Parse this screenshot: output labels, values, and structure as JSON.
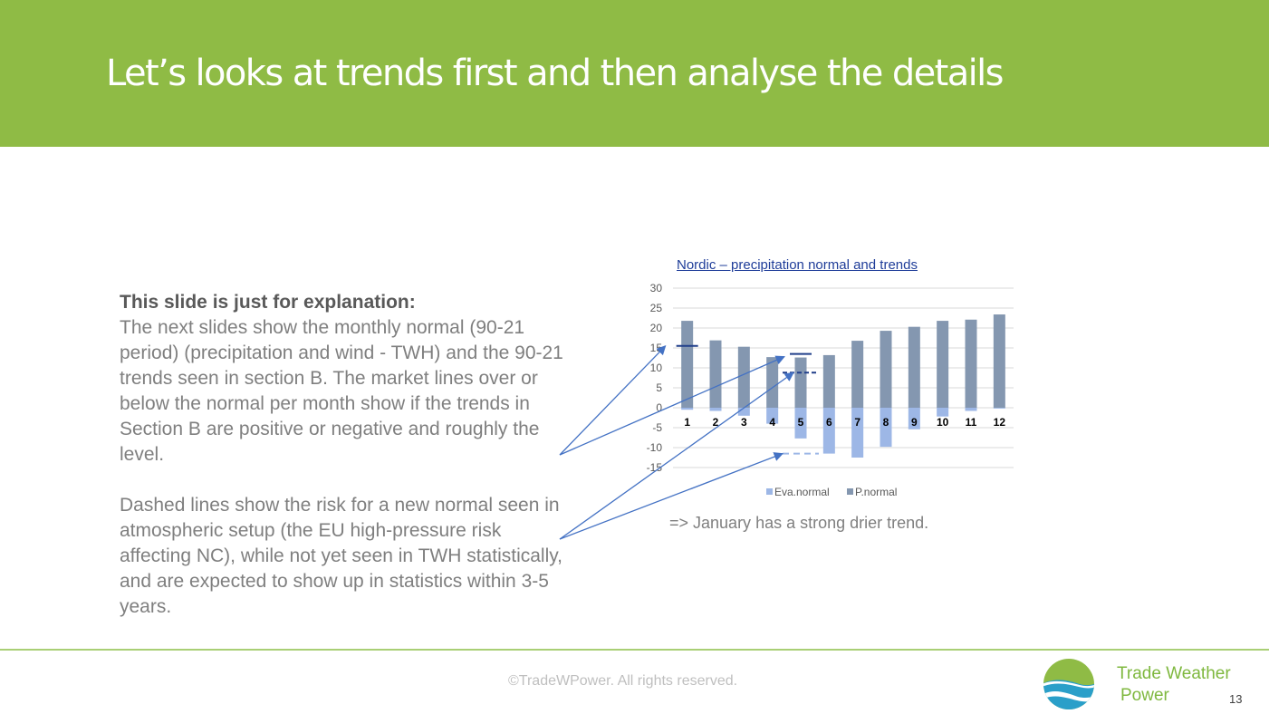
{
  "slide": {
    "title": "Let’s looks at trends first and then analyse the details",
    "body_heading": "This slide is just for explanation:",
    "body_paragraph1": "The next slides show the monthly normal (90-21 period) (precipitation and wind - TWH) and the 90-21 trends seen in section B. The market lines over or below the normal per month show if the trends in Section B are positive or negative and roughly the level.",
    "body_paragraph2": "Dashed lines show the risk for a new normal seen in atmospheric setup (the EU high-pressure risk affecting NC), while not yet seen in TWH statistically, and are expected to show up in statistics within 3-5 years.",
    "conclusion": "=> January has a strong drier trend.",
    "copyright": "©TradeWPower. All rights reserved.",
    "brand_line1": "Trade Weather",
    "brand_line2": "Power",
    "page_number": "13"
  },
  "colors": {
    "header_green": "#8fbb45",
    "eva_normal": "#9db7e6",
    "p_normal": "#8497b0",
    "trend_line": "#203f8a",
    "dashed_line": "#9db7e6",
    "arrow": "#4472c4"
  },
  "chart_data": {
    "type": "bar",
    "title": "Nordic – precipitation normal and trends",
    "categories": [
      "1",
      "2",
      "3",
      "4",
      "5",
      "6",
      "7",
      "8",
      "9",
      "10",
      "11",
      "12"
    ],
    "series": [
      {
        "name": "Eva.normal",
        "values": [
          -0.5,
          -0.8,
          -2,
          -4,
          -7.7,
          -11.5,
          -12.5,
          -9.8,
          -5.4,
          -2.2,
          -0.8,
          -0.2
        ]
      },
      {
        "name": "P.normal",
        "values": [
          21.8,
          16.9,
          15.3,
          12.7,
          12.6,
          13.2,
          16.8,
          19.3,
          20.3,
          21.8,
          22.1,
          23.4
        ]
      }
    ],
    "ylim": [
      -15,
      30
    ],
    "yticks": [
      30,
      25,
      20,
      15,
      10,
      5,
      0,
      -5,
      -10,
      -15
    ],
    "grid": true,
    "legend": "bottom",
    "trend_markers": [
      {
        "month": "1",
        "value": 15.5,
        "style": "solid"
      },
      {
        "month": "5",
        "value": 13.5,
        "style": "solid"
      },
      {
        "month": "5",
        "value": 8.8,
        "style": "dashed"
      },
      {
        "month": "5",
        "value": -11.5,
        "style": "dashed"
      }
    ]
  }
}
